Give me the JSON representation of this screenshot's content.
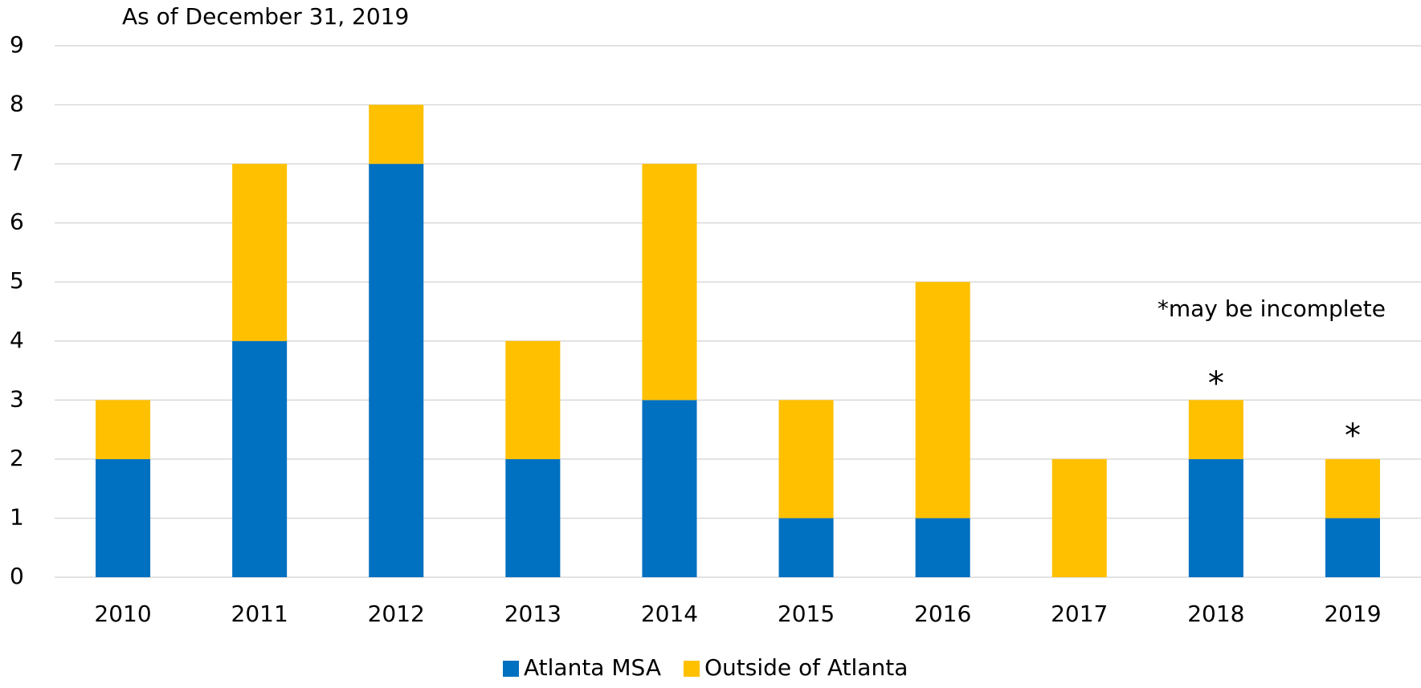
{
  "chart_data": {
    "type": "stacked_bar",
    "subtitle": "As of December 31, 2019",
    "categories": [
      "2010",
      "2011",
      "2012",
      "2013",
      "2014",
      "2015",
      "2016",
      "2017",
      "2018",
      "2019"
    ],
    "series": [
      {
        "name": "Atlanta MSA",
        "color": "#0070c0",
        "values": [
          2,
          4,
          7,
          2,
          3,
          1,
          1,
          0,
          2,
          1
        ]
      },
      {
        "name": "Outside of Atlanta",
        "color": "#ffc000",
        "values": [
          1,
          3,
          1,
          2,
          4,
          2,
          4,
          2,
          1,
          1
        ]
      }
    ],
    "annotations": [
      "*may be incomplete",
      "*",
      "*"
    ],
    "ylim": [
      0,
      9
    ],
    "yticks": [
      0,
      1,
      2,
      3,
      4,
      5,
      6,
      7,
      8,
      9
    ],
    "grid": true,
    "legend": "bottom"
  }
}
